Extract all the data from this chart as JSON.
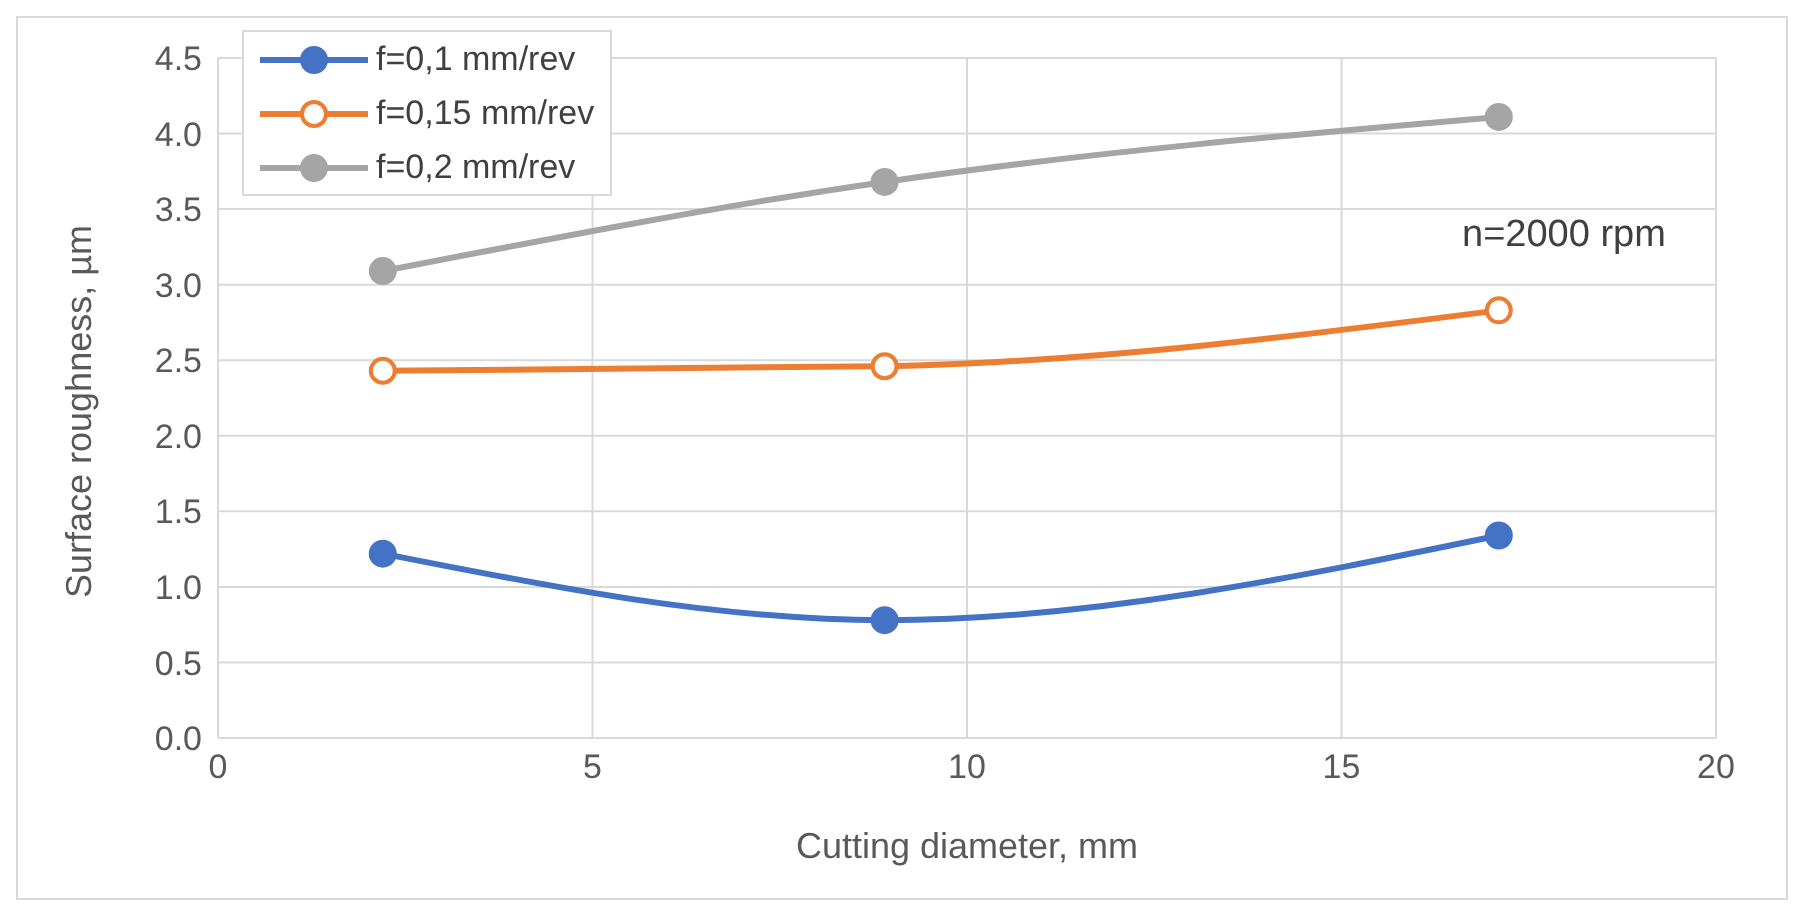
{
  "chart_data": {
    "type": "line",
    "xlabel": "Cutting diameter, mm",
    "ylabel": "Surface roughness, µm",
    "annotations": [
      "n=2000 rpm"
    ],
    "x": [
      2.2,
      8.9,
      17.1
    ],
    "series": [
      {
        "name": "f=0,1 mm/rev",
        "color": "#4472c4",
        "values": [
          1.22,
          0.78,
          1.34
        ],
        "marker": "circle"
      },
      {
        "name": "f=0,15 mm/rev",
        "color": "#ed7d31",
        "values": [
          2.43,
          2.46,
          2.83
        ],
        "marker": "circle"
      },
      {
        "name": "f=0,2 mm/rev",
        "color": "#a5a5a5",
        "values": [
          3.09,
          3.68,
          4.11
        ],
        "marker": "circle"
      }
    ],
    "xlim": [
      0,
      20
    ],
    "xticks": [
      0,
      5,
      10,
      15,
      20
    ],
    "ylim": [
      0,
      4.5
    ],
    "yticks": [
      {
        "value": 0,
        "label": "0.0"
      },
      {
        "value": 0.5,
        "label": "0.5"
      },
      {
        "value": 1,
        "label": "1.0"
      },
      {
        "value": 1.5,
        "label": "1.5"
      },
      {
        "value": 2,
        "label": "2.0"
      },
      {
        "value": 2.5,
        "label": "2.5"
      },
      {
        "value": 3,
        "label": "3.0"
      },
      {
        "value": 3.5,
        "label": "3.5"
      },
      {
        "value": 4,
        "label": "4.0"
      },
      {
        "value": 4.5,
        "label": "4.5"
      }
    ],
    "grid": true,
    "legend": "top left"
  }
}
